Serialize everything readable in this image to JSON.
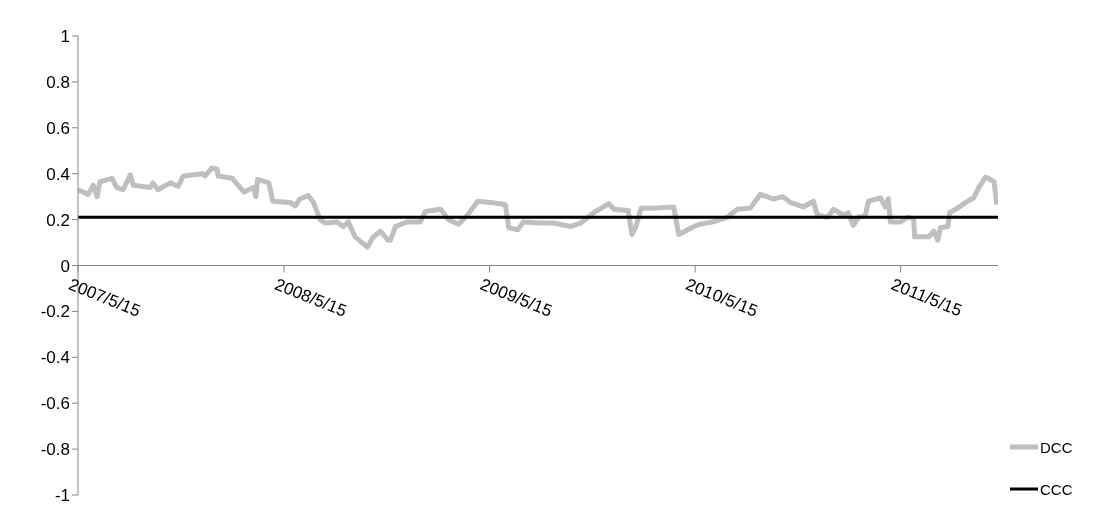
{
  "chart_data": {
    "type": "line",
    "xlim": [
      "2007-05-15",
      "2011-11-04"
    ],
    "xticks": [
      {
        "value": "2007-05-15",
        "label": "2007/5/15"
      },
      {
        "value": "2008-05-15",
        "label": "2008/5/15"
      },
      {
        "value": "2009-05-15",
        "label": "2009/5/15"
      },
      {
        "value": "2010-05-15",
        "label": "2010/5/15"
      },
      {
        "value": "2011-05-15",
        "label": "2011/5/15"
      }
    ],
    "ylim": [
      -1,
      1
    ],
    "yticks": [
      -1,
      -0.8,
      -0.6,
      -0.4,
      -0.2,
      0,
      0.2,
      0.4,
      0.6,
      0.8,
      1
    ],
    "legend": "bottom right",
    "marker": "none",
    "series": [
      {
        "name": "DCC",
        "color": "#bfbfbf",
        "x": [
          "2007-05-15",
          "2007-06-02",
          "2007-06-11",
          "2007-06-18",
          "2007-06-23",
          "2007-07-14",
          "2007-07-23",
          "2007-08-03",
          "2007-08-16",
          "2007-08-21",
          "2007-09-20",
          "2007-09-25",
          "2007-10-04",
          "2007-10-26",
          "2007-11-09",
          "2007-11-18",
          "2007-12-22",
          "2007-12-27",
          "2008-01-08",
          "2008-01-17",
          "2008-01-19",
          "2008-02-13",
          "2008-03-05",
          "2008-03-22",
          "2008-03-26",
          "2008-03-29",
          "2008-04-18",
          "2008-04-25",
          "2008-05-26",
          "2008-06-04",
          "2008-06-12",
          "2008-06-27",
          "2008-07-06",
          "2008-07-18",
          "2008-07-27",
          "2008-08-17",
          "2008-08-28",
          "2008-09-06",
          "2008-09-18",
          "2008-10-10",
          "2008-10-19",
          "2008-11-02",
          "2008-11-16",
          "2008-11-20",
          "2008-11-29",
          "2008-12-20",
          "2009-01-12",
          "2009-01-21",
          "2009-02-17",
          "2009-03-03",
          "2009-03-21",
          "2009-04-06",
          "2009-04-24",
          "2009-05-17",
          "2009-06-12",
          "2009-06-18",
          "2009-07-04",
          "2009-07-14",
          "2009-08-14",
          "2009-09-06",
          "2009-10-06",
          "2009-10-24",
          "2009-11-16",
          "2009-12-13",
          "2009-12-22",
          "2010-01-16",
          "2010-01-23",
          "2010-01-30",
          "2010-02-08",
          "2010-03-03",
          "2010-04-07",
          "2010-04-16",
          "2010-05-13",
          "2010-05-24",
          "2010-06-16",
          "2010-07-11",
          "2010-07-29",
          "2010-08-21",
          "2010-09-08",
          "2010-10-01",
          "2010-10-18",
          "2010-10-31",
          "2010-11-23",
          "2010-12-11",
          "2010-12-18",
          "2011-01-05",
          "2011-01-16",
          "2011-02-02",
          "2011-02-11",
          "2011-02-20",
          "2011-03-01",
          "2011-03-13",
          "2011-03-19",
          "2011-04-09",
          "2011-04-18",
          "2011-04-23",
          "2011-04-27",
          "2011-05-15",
          "2011-05-27",
          "2011-06-07",
          "2011-06-09",
          "2011-07-04",
          "2011-07-13",
          "2011-07-20",
          "2011-07-25",
          "2011-08-07",
          "2011-08-10",
          "2011-08-24",
          "2011-09-11",
          "2011-09-22",
          "2011-10-01",
          "2011-10-13",
          "2011-10-28",
          "2011-11-02"
        ],
        "values": [
          0.33,
          0.31,
          0.35,
          0.3,
          0.365,
          0.38,
          0.34,
          0.33,
          0.395,
          0.35,
          0.34,
          0.36,
          0.33,
          0.36,
          0.345,
          0.39,
          0.4,
          0.39,
          0.425,
          0.42,
          0.39,
          0.38,
          0.32,
          0.34,
          0.3,
          0.375,
          0.36,
          0.28,
          0.275,
          0.26,
          0.29,
          0.305,
          0.275,
          0.2,
          0.185,
          0.19,
          0.17,
          0.19,
          0.125,
          0.08,
          0.12,
          0.15,
          0.11,
          0.11,
          0.17,
          0.19,
          0.19,
          0.235,
          0.245,
          0.2,
          0.18,
          0.22,
          0.28,
          0.275,
          0.265,
          0.165,
          0.155,
          0.19,
          0.185,
          0.185,
          0.17,
          0.185,
          0.23,
          0.27,
          0.245,
          0.24,
          0.135,
          0.17,
          0.25,
          0.25,
          0.255,
          0.135,
          0.17,
          0.18,
          0.19,
          0.21,
          0.245,
          0.25,
          0.31,
          0.29,
          0.3,
          0.275,
          0.255,
          0.28,
          0.22,
          0.21,
          0.245,
          0.22,
          0.23,
          0.175,
          0.21,
          0.215,
          0.28,
          0.295,
          0.255,
          0.29,
          0.19,
          0.19,
          0.21,
          0.205,
          0.125,
          0.125,
          0.15,
          0.11,
          0.165,
          0.17,
          0.23,
          0.25,
          0.28,
          0.295,
          0.34,
          0.385,
          0.365,
          0.265
        ]
      },
      {
        "name": "CCC",
        "color": "#000000",
        "x": [
          "2007-05-15",
          "2011-11-04"
        ],
        "values": [
          0.21,
          0.21
        ]
      }
    ]
  }
}
